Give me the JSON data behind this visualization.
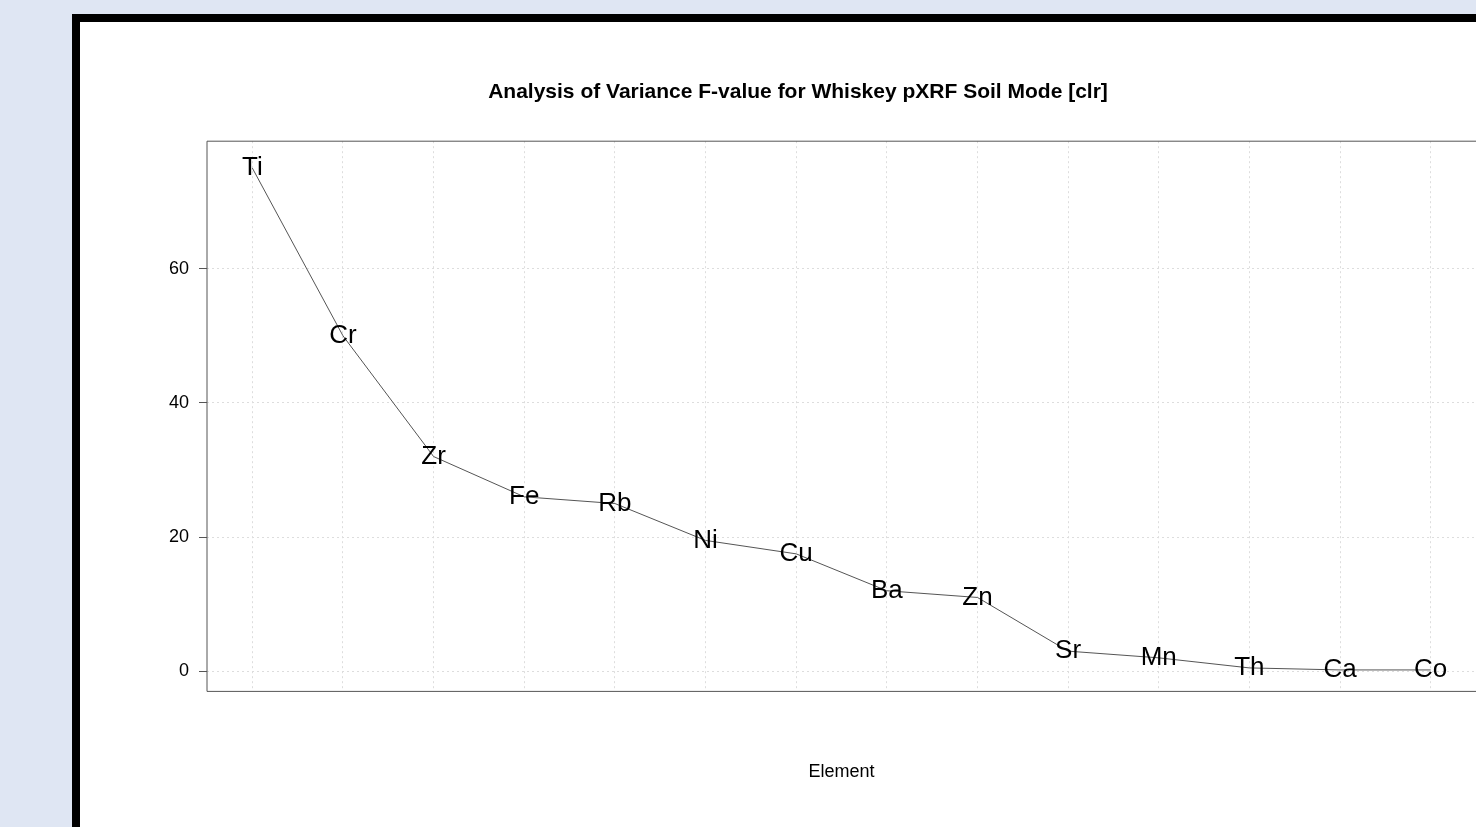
{
  "chart_data": {
    "type": "line",
    "title": "Analysis of Variance F-value for Whiskey pXRF Soil Mode [clr]",
    "xlabel": "Element",
    "categories": [
      "Ti",
      "Cr",
      "Zr",
      "Fe",
      "Rb",
      "Ni",
      "Cu",
      "Ba",
      "Zn",
      "Sr",
      "Mn",
      "Th",
      "Ca",
      "Co"
    ],
    "values": [
      75,
      50,
      32,
      26,
      25,
      19.5,
      17.5,
      12,
      11,
      3,
      2,
      0.5,
      0.2,
      0.2
    ],
    "color": "#555555",
    "ylim": [
      -3,
      79
    ],
    "yticks": [
      0,
      20,
      40,
      60
    ],
    "grid": true,
    "marker": "none",
    "tick_labels": "y"
  }
}
